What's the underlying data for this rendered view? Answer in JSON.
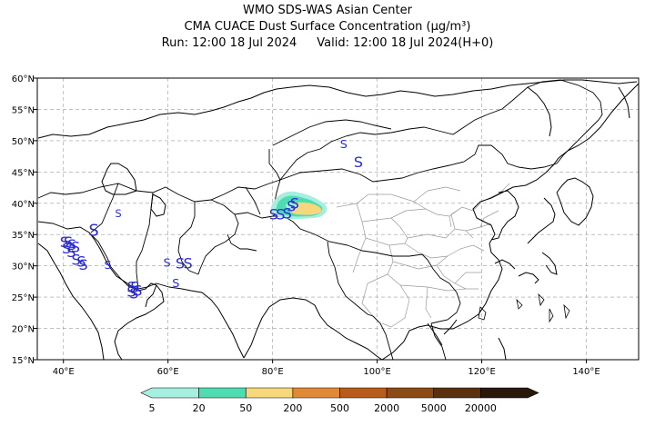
{
  "header": {
    "line1": "WMO SDS-WAS Asian Center",
    "line2": "CMA CUACE Dust Surface Concentration (μg/m³)",
    "run": "Run: 12:00 18 Jul 2024",
    "valid": "Valid: 12:00 18 Jul 2024(H+0)"
  },
  "map": {
    "lon_range": [
      35,
      150
    ],
    "lat_range": [
      15,
      60
    ],
    "x_ticks": [
      {
        "lon": 40,
        "label": "40°E"
      },
      {
        "lon": 60,
        "label": "60°E"
      },
      {
        "lon": 80,
        "label": "80°E"
      },
      {
        "lon": 100,
        "label": "100°E"
      },
      {
        "lon": 120,
        "label": "120°E"
      },
      {
        "lon": 140,
        "label": "140°E"
      }
    ],
    "y_ticks": [
      {
        "lat": 60,
        "label": "60°N"
      },
      {
        "lat": 55,
        "label": "55°N"
      },
      {
        "lat": 50,
        "label": "50°N"
      },
      {
        "lat": 45,
        "label": "45°N"
      },
      {
        "lat": 40,
        "label": "40°N"
      },
      {
        "lat": 35,
        "label": "35°N"
      },
      {
        "lat": 30,
        "label": "30°N"
      },
      {
        "lat": 25,
        "label": "25°N"
      },
      {
        "lat": 20,
        "label": "20°N"
      },
      {
        "lat": 15,
        "label": "15°N"
      }
    ],
    "dust_symbol": "S",
    "dust_symbol_color": "#2b2bd6",
    "dust_symbols": [
      {
        "lon": 40.2,
        "lat": 33.0,
        "s": 1
      },
      {
        "lon": 40.9,
        "lat": 33.0,
        "s": 1
      },
      {
        "lon": 41.6,
        "lat": 32.6,
        "s": 1
      },
      {
        "lon": 40.6,
        "lat": 32.0,
        "s": 1
      },
      {
        "lon": 41.5,
        "lat": 31.4,
        "s": 1
      },
      {
        "lon": 42.3,
        "lat": 32.2,
        "s": 1
      },
      {
        "lon": 42.4,
        "lat": 30.2,
        "s": 1
      },
      {
        "lon": 43.4,
        "lat": 29.9,
        "s": 1
      },
      {
        "lon": 43.8,
        "lat": 29.4,
        "s": 1
      },
      {
        "lon": 45.8,
        "lat": 34.8,
        "s": 1.1
      },
      {
        "lon": 48.5,
        "lat": 29.5,
        "s": 0.8
      },
      {
        "lon": 50.5,
        "lat": 37.8,
        "s": 0.7
      },
      {
        "lon": 53.0,
        "lat": 25.8,
        "s": 1
      },
      {
        "lon": 53.7,
        "lat": 25.8,
        "s": 1
      },
      {
        "lon": 54.2,
        "lat": 25.2,
        "s": 1
      },
      {
        "lon": 53.5,
        "lat": 24.8,
        "s": 1
      },
      {
        "lon": 53.0,
        "lat": 25.1,
        "s": 1
      },
      {
        "lon": 59.8,
        "lat": 29.9,
        "s": 0.8
      },
      {
        "lon": 62.3,
        "lat": 29.6,
        "s": 1
      },
      {
        "lon": 63.8,
        "lat": 29.6,
        "s": 1
      },
      {
        "lon": 61.5,
        "lat": 26.6,
        "s": 0.8
      },
      {
        "lon": 80.2,
        "lat": 37.4,
        "s": 1
      },
      {
        "lon": 81.5,
        "lat": 37.4,
        "s": 1
      },
      {
        "lon": 82.8,
        "lat": 37.6,
        "s": 1
      },
      {
        "lon": 83.6,
        "lat": 38.7,
        "s": 1
      },
      {
        "lon": 84.2,
        "lat": 39.2,
        "s": 1
      },
      {
        "lon": 93.6,
        "lat": 48.8,
        "s": 0.8
      },
      {
        "lon": 96.4,
        "lat": 45.8,
        "s": 1
      }
    ]
  },
  "colorbar": {
    "labels": [
      "5",
      "20",
      "50",
      "200",
      "500",
      "2000",
      "5000",
      "20000"
    ],
    "colors": [
      "#a6eee0",
      "#4fdcb0",
      "#f6d77c",
      "#e08a38",
      "#b85c1c",
      "#8c4a14",
      "#5a300e",
      "#2a1808"
    ]
  }
}
